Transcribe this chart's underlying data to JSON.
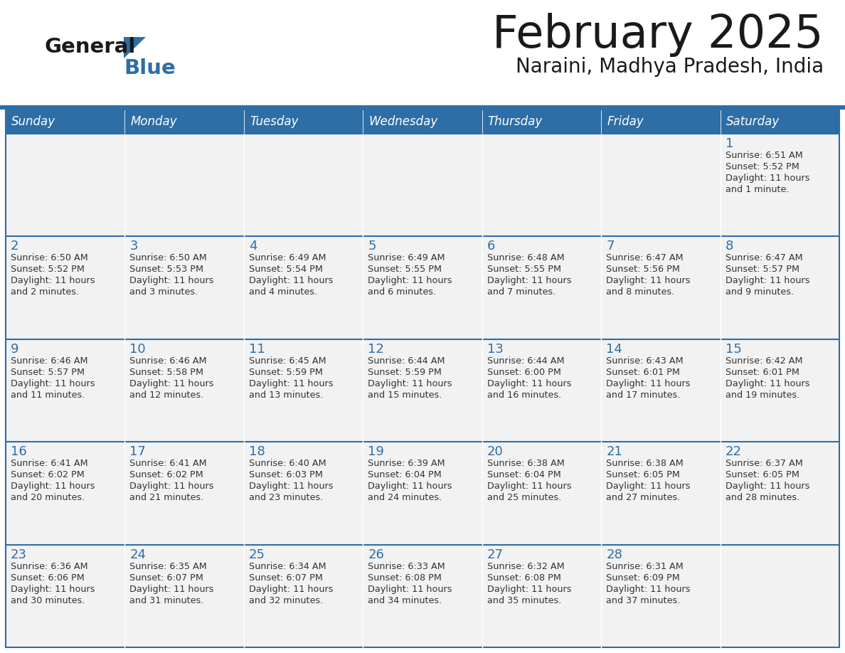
{
  "title": "February 2025",
  "subtitle": "Naraini, Madhya Pradesh, India",
  "header_bg": "#2E6EA6",
  "header_text": "#FFFFFF",
  "cell_bg": "#F2F2F2",
  "border_color": "#2E6EA6",
  "title_color": "#1a1a1a",
  "subtitle_color": "#1a1a1a",
  "day_num_color": "#2E6EA6",
  "text_color": "#333333",
  "day_headers": [
    "Sunday",
    "Monday",
    "Tuesday",
    "Wednesday",
    "Thursday",
    "Friday",
    "Saturday"
  ],
  "calendar": [
    [
      null,
      null,
      null,
      null,
      null,
      null,
      {
        "day": "1",
        "sunrise": "6:51 AM",
        "sunset": "5:52 PM",
        "daylight": "11 hours and 1 minute."
      }
    ],
    [
      {
        "day": "2",
        "sunrise": "6:50 AM",
        "sunset": "5:52 PM",
        "daylight": "11 hours and 2 minutes."
      },
      {
        "day": "3",
        "sunrise": "6:50 AM",
        "sunset": "5:53 PM",
        "daylight": "11 hours and 3 minutes."
      },
      {
        "day": "4",
        "sunrise": "6:49 AM",
        "sunset": "5:54 PM",
        "daylight": "11 hours and 4 minutes."
      },
      {
        "day": "5",
        "sunrise": "6:49 AM",
        "sunset": "5:55 PM",
        "daylight": "11 hours and 6 minutes."
      },
      {
        "day": "6",
        "sunrise": "6:48 AM",
        "sunset": "5:55 PM",
        "daylight": "11 hours and 7 minutes."
      },
      {
        "day": "7",
        "sunrise": "6:47 AM",
        "sunset": "5:56 PM",
        "daylight": "11 hours and 8 minutes."
      },
      {
        "day": "8",
        "sunrise": "6:47 AM",
        "sunset": "5:57 PM",
        "daylight": "11 hours and 9 minutes."
      }
    ],
    [
      {
        "day": "9",
        "sunrise": "6:46 AM",
        "sunset": "5:57 PM",
        "daylight": "11 hours and 11 minutes."
      },
      {
        "day": "10",
        "sunrise": "6:46 AM",
        "sunset": "5:58 PM",
        "daylight": "11 hours and 12 minutes."
      },
      {
        "day": "11",
        "sunrise": "6:45 AM",
        "sunset": "5:59 PM",
        "daylight": "11 hours and 13 minutes."
      },
      {
        "day": "12",
        "sunrise": "6:44 AM",
        "sunset": "5:59 PM",
        "daylight": "11 hours and 15 minutes."
      },
      {
        "day": "13",
        "sunrise": "6:44 AM",
        "sunset": "6:00 PM",
        "daylight": "11 hours and 16 minutes."
      },
      {
        "day": "14",
        "sunrise": "6:43 AM",
        "sunset": "6:01 PM",
        "daylight": "11 hours and 17 minutes."
      },
      {
        "day": "15",
        "sunrise": "6:42 AM",
        "sunset": "6:01 PM",
        "daylight": "11 hours and 19 minutes."
      }
    ],
    [
      {
        "day": "16",
        "sunrise": "6:41 AM",
        "sunset": "6:02 PM",
        "daylight": "11 hours and 20 minutes."
      },
      {
        "day": "17",
        "sunrise": "6:41 AM",
        "sunset": "6:02 PM",
        "daylight": "11 hours and 21 minutes."
      },
      {
        "day": "18",
        "sunrise": "6:40 AM",
        "sunset": "6:03 PM",
        "daylight": "11 hours and 23 minutes."
      },
      {
        "day": "19",
        "sunrise": "6:39 AM",
        "sunset": "6:04 PM",
        "daylight": "11 hours and 24 minutes."
      },
      {
        "day": "20",
        "sunrise": "6:38 AM",
        "sunset": "6:04 PM",
        "daylight": "11 hours and 25 minutes."
      },
      {
        "day": "21",
        "sunrise": "6:38 AM",
        "sunset": "6:05 PM",
        "daylight": "11 hours and 27 minutes."
      },
      {
        "day": "22",
        "sunrise": "6:37 AM",
        "sunset": "6:05 PM",
        "daylight": "11 hours and 28 minutes."
      }
    ],
    [
      {
        "day": "23",
        "sunrise": "6:36 AM",
        "sunset": "6:06 PM",
        "daylight": "11 hours and 30 minutes."
      },
      {
        "day": "24",
        "sunrise": "6:35 AM",
        "sunset": "6:07 PM",
        "daylight": "11 hours and 31 minutes."
      },
      {
        "day": "25",
        "sunrise": "6:34 AM",
        "sunset": "6:07 PM",
        "daylight": "11 hours and 32 minutes."
      },
      {
        "day": "26",
        "sunrise": "6:33 AM",
        "sunset": "6:08 PM",
        "daylight": "11 hours and 34 minutes."
      },
      {
        "day": "27",
        "sunrise": "6:32 AM",
        "sunset": "6:08 PM",
        "daylight": "11 hours and 35 minutes."
      },
      {
        "day": "28",
        "sunrise": "6:31 AM",
        "sunset": "6:09 PM",
        "daylight": "11 hours and 37 minutes."
      },
      null
    ]
  ],
  "fig_width": 11.88,
  "fig_height": 9.18,
  "dpi": 100
}
